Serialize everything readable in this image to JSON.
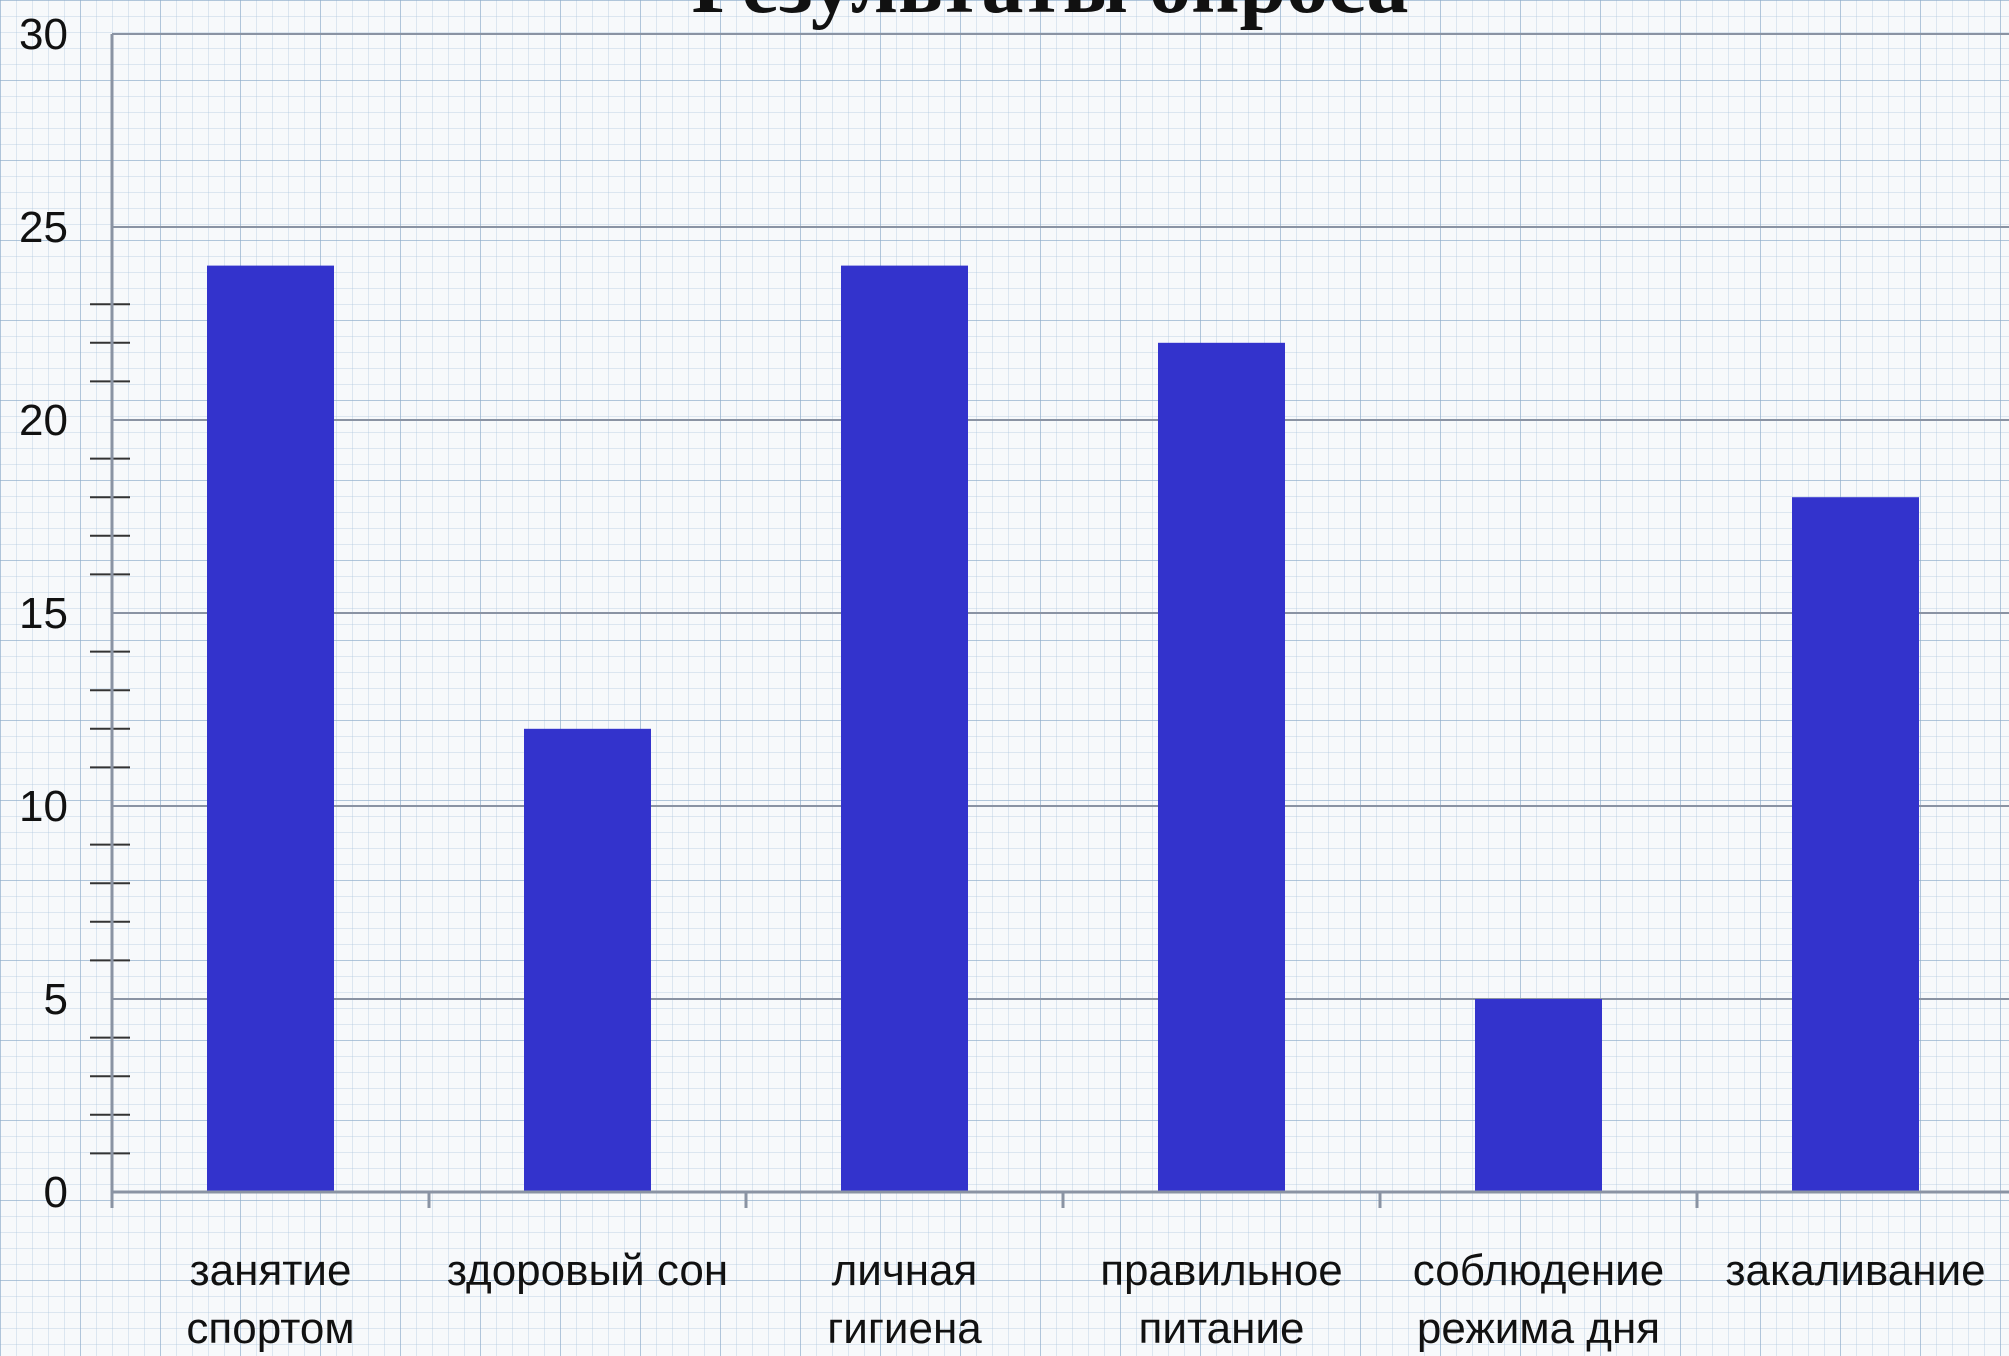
{
  "chart_data": {
    "type": "bar",
    "title": "Результаты опроса",
    "categories": [
      [
        "занятие",
        "спортом"
      ],
      [
        "здоровый сон"
      ],
      [
        "личная",
        "гигиена"
      ],
      [
        "правильное",
        "питание"
      ],
      [
        "соблюдение",
        "режима дня"
      ],
      [
        "закаливание"
      ]
    ],
    "values": [
      24,
      12,
      24,
      22,
      5,
      18
    ],
    "yticks": [
      "0",
      "5",
      "10",
      "15",
      "20",
      "25",
      "30"
    ],
    "ylim": [
      0,
      30
    ],
    "xlabel": "",
    "ylabel": "",
    "grid": true,
    "legend": "none",
    "colors": {
      "bar": "#3333cc",
      "gridline": "#8a93a3",
      "axis": "#8a93a3"
    }
  }
}
